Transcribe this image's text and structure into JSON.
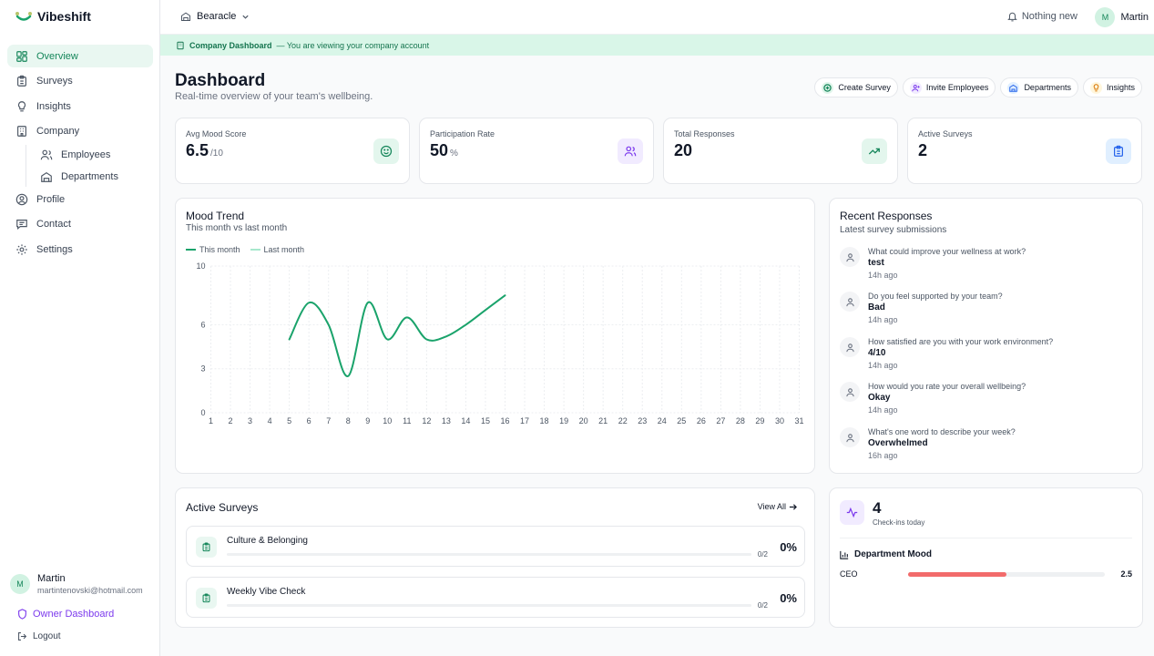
{
  "brand": {
    "name": "Vibeshift"
  },
  "sidebar": {
    "items": [
      {
        "label": "Overview",
        "icon": "grid-icon",
        "active": true
      },
      {
        "label": "Surveys",
        "icon": "clipboard-icon"
      },
      {
        "label": "Insights",
        "icon": "lightbulb-icon"
      },
      {
        "label": "Company",
        "icon": "building-icon"
      }
    ],
    "sub_items": [
      {
        "label": "Employees",
        "icon": "users-icon"
      },
      {
        "label": "Departments",
        "icon": "department-icon"
      }
    ],
    "items_bottom": [
      {
        "label": "Profile",
        "icon": "user-circle-icon"
      },
      {
        "label": "Contact",
        "icon": "message-icon"
      },
      {
        "label": "Settings",
        "icon": "gear-icon"
      }
    ],
    "user": {
      "initial": "M",
      "name": "Martin",
      "email": "martintenovski@hotmail.com"
    },
    "owner_link": "Owner Dashboard",
    "logout": "Logout"
  },
  "topbar": {
    "org": "Bearacle",
    "notifications": "Nothing new",
    "user_initial": "M",
    "user_name": "Martin"
  },
  "banner": {
    "strong": "Company Dashboard",
    "text": "— You are viewing your company account"
  },
  "header": {
    "title": "Dashboard",
    "subtitle": "Real-time overview of your team's wellbeing.",
    "actions": [
      "Create Survey",
      "Invite Employees",
      "Departments",
      "Insights"
    ]
  },
  "stats": [
    {
      "label": "Avg Mood Score",
      "value": "6.5",
      "unit": "/10",
      "icon": "smile-icon"
    },
    {
      "label": "Participation Rate",
      "value": "50",
      "unit": "%",
      "icon": "users-icon"
    },
    {
      "label": "Total Responses",
      "value": "20",
      "unit": "",
      "icon": "trend-up-icon"
    },
    {
      "label": "Active Surveys",
      "value": "2",
      "unit": "",
      "icon": "clipboard-icon"
    }
  ],
  "colors": {
    "accent": "#1aa36b",
    "last_month": "#a7e8cd",
    "purple": "#7c3aed",
    "red": "#f26b6b"
  },
  "mood_trend": {
    "title": "Mood Trend",
    "subtitle": "This month vs last month",
    "legend": [
      "This month",
      "Last month"
    ]
  },
  "chart_data": {
    "type": "line",
    "title": "Mood Trend",
    "subtitle": "This month vs last month",
    "x": [
      1,
      2,
      3,
      4,
      5,
      6,
      7,
      8,
      9,
      10,
      11,
      12,
      13,
      14,
      15,
      16,
      17,
      18,
      19,
      20,
      21,
      22,
      23,
      24,
      25,
      26,
      27,
      28,
      29,
      30,
      31
    ],
    "yticks": [
      0,
      3,
      6,
      10
    ],
    "ylim": [
      0,
      10
    ],
    "series": [
      {
        "name": "This month",
        "x": [
          5,
          6,
          7,
          8,
          9,
          10,
          11,
          12,
          13,
          14,
          15,
          16
        ],
        "values": [
          5,
          7.5,
          6,
          2.5,
          7.5,
          5,
          6.5,
          5,
          5.2,
          6,
          7,
          8
        ]
      },
      {
        "name": "Last month",
        "x": [],
        "values": []
      }
    ],
    "grid": true,
    "legend": "top-left"
  },
  "recent": {
    "title": "Recent Responses",
    "subtitle": "Latest survey submissions",
    "items": [
      {
        "question": "What could improve your wellness at work?",
        "answer": "test",
        "time": "14h ago"
      },
      {
        "question": "Do you feel supported by your team?",
        "answer": "Bad",
        "time": "14h ago"
      },
      {
        "question": "How satisfied are you with your work environment?",
        "answer": "4/10",
        "time": "14h ago"
      },
      {
        "question": "How would you rate your overall wellbeing?",
        "answer": "Okay",
        "time": "14h ago"
      },
      {
        "question": "What's one word to describe your week?",
        "answer": "Overwhelmed",
        "time": "16h ago"
      }
    ]
  },
  "active_surveys": {
    "title": "Active Surveys",
    "view_all": "View All",
    "items": [
      {
        "name": "Culture & Belonging",
        "count": "0/2",
        "pct": "0%",
        "progress": 0
      },
      {
        "name": "Weekly Vibe Check",
        "count": "0/2",
        "pct": "0%",
        "progress": 0
      }
    ]
  },
  "checkins": {
    "count": "4",
    "label": "Check-ins today",
    "dept_title": "Department Mood",
    "departments": [
      {
        "name": "CEO",
        "value": "2.5",
        "level": 0.5
      }
    ]
  }
}
